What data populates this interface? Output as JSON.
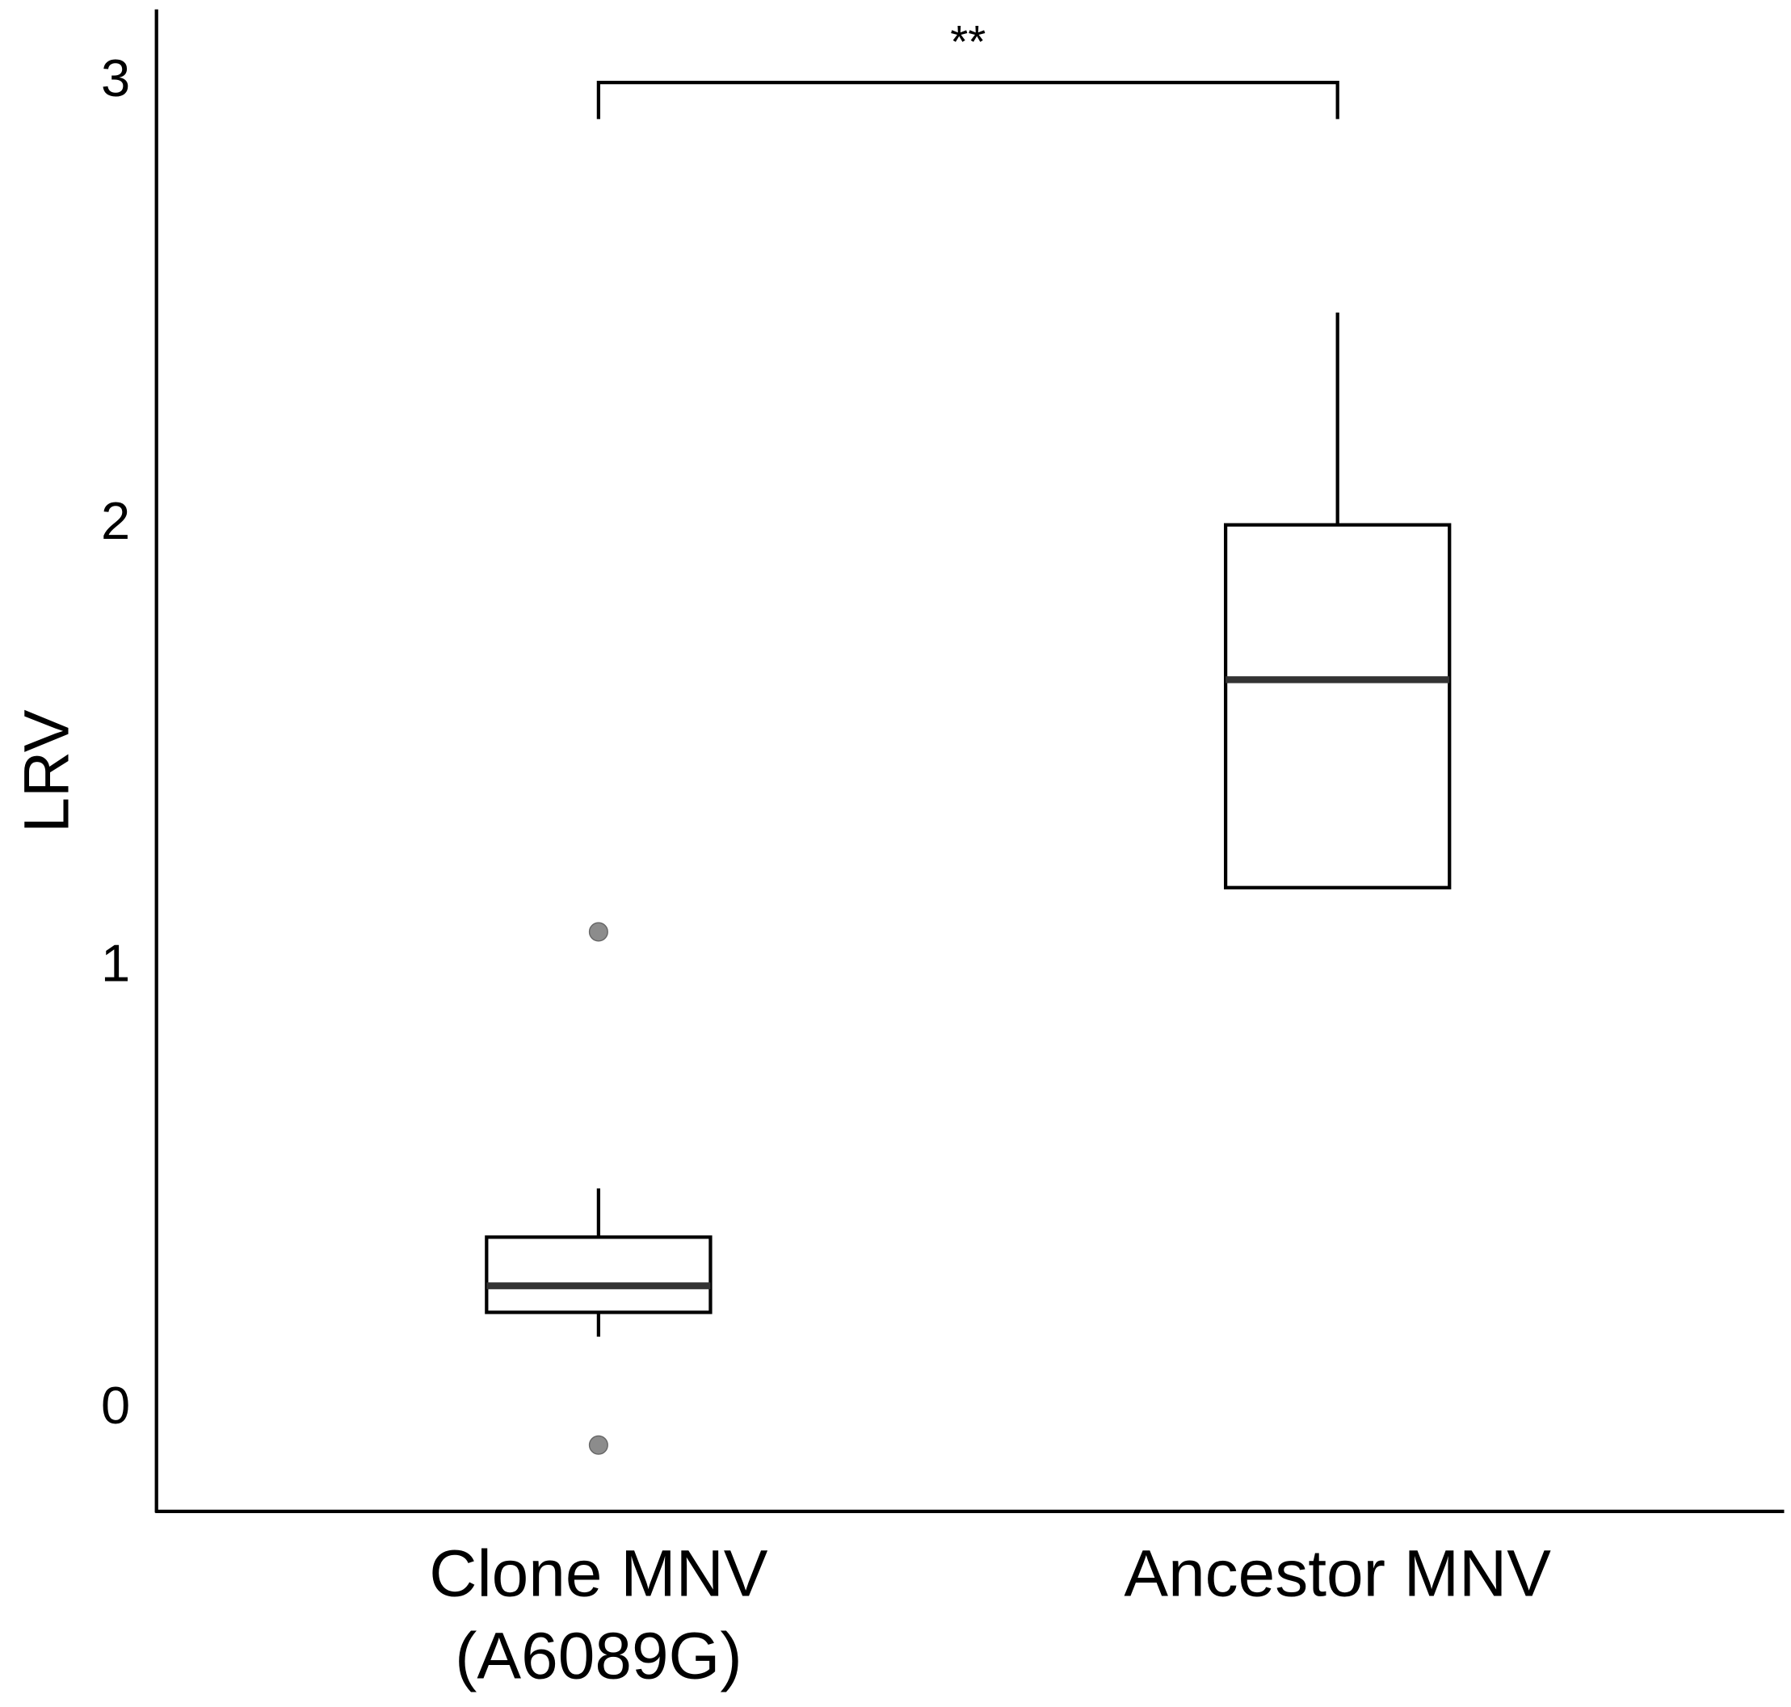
{
  "chart_data": {
    "type": "box",
    "y_label": "LRV",
    "categories": [
      "Clone MNV\n(A6089G)",
      "Ancestor MNV"
    ],
    "boxes": [
      {
        "whisker_low": 0.165,
        "q1": 0.22,
        "median": 0.28,
        "q3": 0.39,
        "whisker_high": 0.5,
        "outliers": [
          1.08,
          -0.08
        ]
      },
      {
        "whisker_low": 1.18,
        "q1": 1.18,
        "median": 1.65,
        "q3": 2.0,
        "whisker_high": 2.48,
        "outliers": []
      }
    ],
    "box_color": "#ffffff",
    "line_color": "#000000",
    "median_color": "#333333",
    "outlier_color": "#8c8c8c",
    "ylim": [
      -0.23,
      3.16
    ],
    "yticks": [
      0,
      1,
      2,
      3
    ],
    "grid": false,
    "significance": {
      "label": "**",
      "y": 3.0
    }
  }
}
